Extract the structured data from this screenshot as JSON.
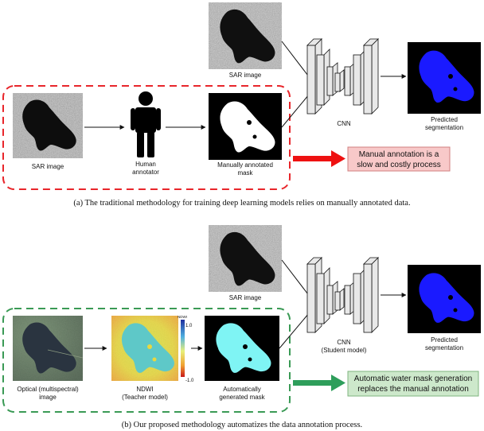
{
  "panel_a": {
    "sar_top_label": "SAR image",
    "sar_input_label": "SAR image",
    "annotator_label": [
      "Human",
      "annotator"
    ],
    "mask_label": [
      "Manually annotated",
      "mask"
    ],
    "cnn_label": "CNN",
    "prediction_label": [
      "Predicted",
      "segmentation"
    ],
    "callout": [
      "Manual annotation is a",
      "slow and costly process"
    ],
    "caption": "(a) The traditional methodology for training deep learning models relies on manually annotated data."
  },
  "panel_b": {
    "sar_top_label": "SAR image",
    "optical_label": [
      "Optical (multispectral)",
      "image"
    ],
    "ndwi_label": [
      "NDWI",
      "(Teacher model)"
    ],
    "colorbar": {
      "title": "NDWI",
      "max": "1.0",
      "min": "-1.0"
    },
    "mask_label": [
      "Automatically",
      "generated mask"
    ],
    "cnn_label": [
      "CNN",
      "(Student model)"
    ],
    "prediction_label": [
      "Predicted",
      "segmentation"
    ],
    "callout": [
      "Automatic water mask generation",
      "replaces the manual annotation"
    ],
    "caption": "(b) Our proposed methodology automatizes the data annotation process."
  },
  "colors": {
    "red_dashed": "#e8262b",
    "green_dashed": "#3a9a55",
    "red_arrow": "#ee1111",
    "green_arrow": "#2e9e5b",
    "red_callout_fill": "#f8c9c9",
    "green_callout_fill": "#cde8cb",
    "prediction_blue": "#1a1aff",
    "mask_cyan": "#7ff4f4",
    "cnn_block": "#e8e8e8"
  }
}
